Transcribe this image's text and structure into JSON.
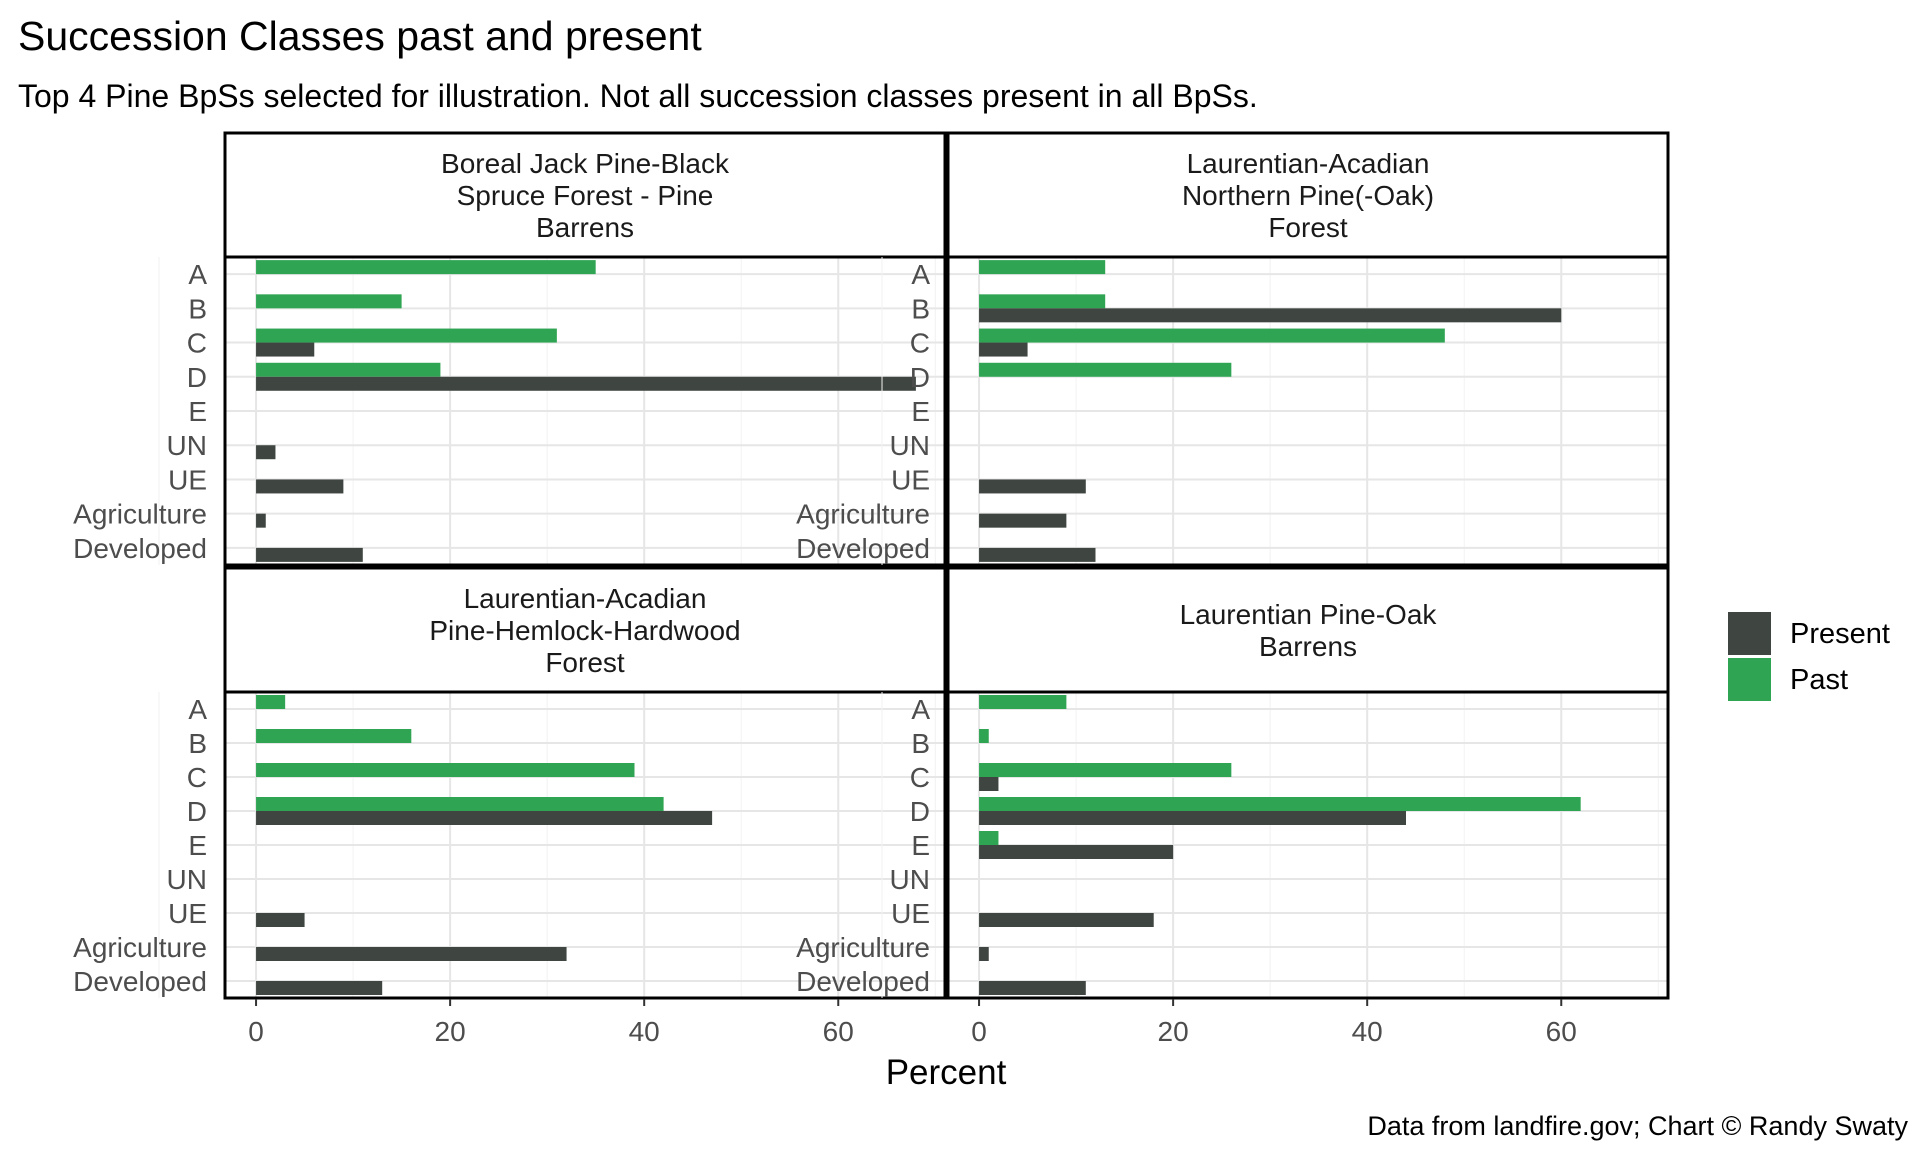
{
  "chart_data": {
    "type": "bar",
    "orientation": "horizontal",
    "title": "Succession Classes past and present",
    "subtitle": "Top 4 Pine BpSs selected for illustration. Not all succession classes present in all BpSs.",
    "xlabel": "Percent",
    "ylabel": "",
    "caption": "Data from landfire.gov; Chart © Randy Swaty",
    "xlim": [
      -3.2,
      71
    ],
    "x_ticks": [
      0,
      20,
      40,
      60
    ],
    "x_tick_labels": [
      "0",
      "20",
      "40",
      "60"
    ],
    "grid": true,
    "legend_position": "right",
    "categories": [
      "A",
      "B",
      "C",
      "D",
      "E",
      "UN",
      "UE",
      "Agriculture",
      "Developed"
    ],
    "legend": [
      {
        "name": "Present",
        "color": "#3f4641"
      },
      {
        "name": "Past",
        "color": "#2fa553"
      }
    ],
    "panels": [
      {
        "title_lines": [
          "Boreal Jack Pine-Black",
          "Spruce Forest - Pine",
          "Barrens"
        ],
        "series": [
          {
            "name": "Past",
            "values": [
              35,
              15,
              31,
              19,
              null,
              null,
              null,
              null,
              null
            ]
          },
          {
            "name": "Present",
            "values": [
              null,
              null,
              6,
              68,
              null,
              2,
              9,
              1,
              11
            ]
          }
        ]
      },
      {
        "title_lines": [
          "Laurentian-Acadian",
          "Northern Pine(-Oak)",
          "Forest"
        ],
        "series": [
          {
            "name": "Past",
            "values": [
              13,
              13,
              48,
              26,
              null,
              null,
              null,
              null,
              null
            ]
          },
          {
            "name": "Present",
            "values": [
              null,
              60,
              5,
              null,
              null,
              null,
              11,
              9,
              12
            ]
          }
        ]
      },
      {
        "title_lines": [
          "Laurentian-Acadian",
          "Pine-Hemlock-Hardwood",
          "Forest"
        ],
        "series": [
          {
            "name": "Past",
            "values": [
              3,
              16,
              39,
              42,
              null,
              null,
              null,
              null,
              null
            ]
          },
          {
            "name": "Present",
            "values": [
              null,
              null,
              null,
              47,
              null,
              null,
              5,
              32,
              13
            ]
          }
        ]
      },
      {
        "title_lines": [
          "Laurentian Pine-Oak",
          "Barrens"
        ],
        "series": [
          {
            "name": "Past",
            "values": [
              9,
              1,
              26,
              62,
              2,
              null,
              null,
              null,
              null
            ]
          },
          {
            "name": "Present",
            "values": [
              null,
              null,
              2,
              44,
              20,
              null,
              18,
              1,
              11
            ]
          }
        ]
      }
    ]
  }
}
